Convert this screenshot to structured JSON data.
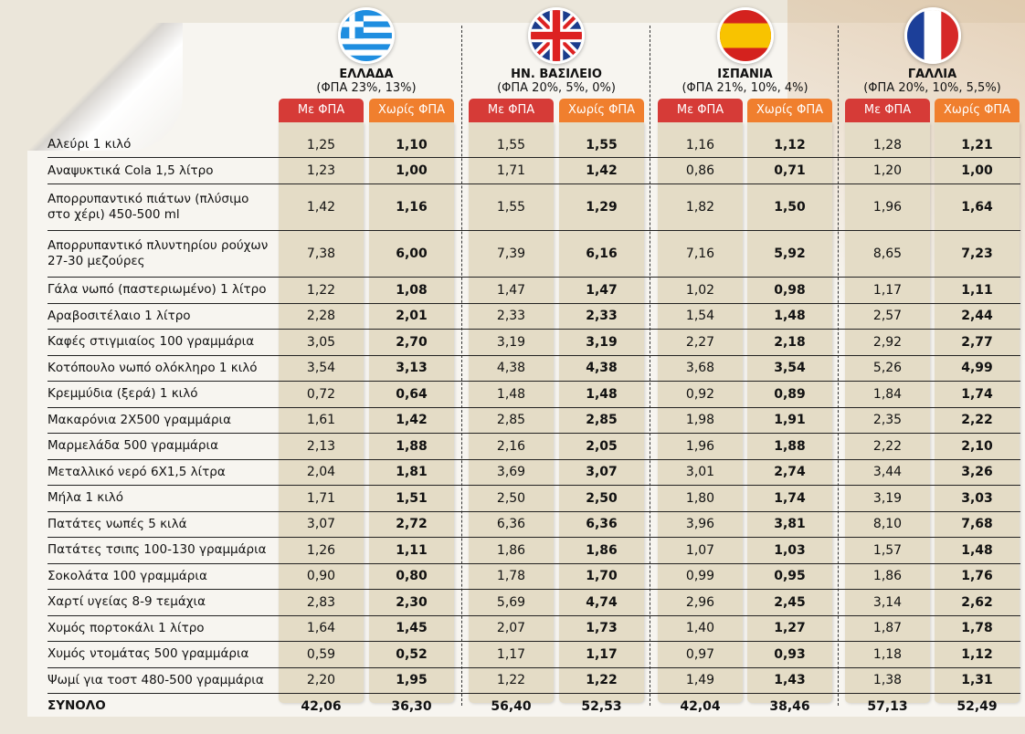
{
  "chart_data": {
    "type": "table",
    "title": "",
    "column_headers": [
      "Με ΦΠΑ",
      "Χωρίς ΦΠΑ"
    ],
    "countries": [
      {
        "name": "ΕΛΛΑΔΑ",
        "vat": "(ΦΠΑ 23%, 13%)",
        "flag": "greece-flag"
      },
      {
        "name": "ΗΝ. ΒΑΣΙΛΕΙΟ",
        "vat": "(ΦΠΑ 20%, 5%, 0%)",
        "flag": "uk-flag"
      },
      {
        "name": "ΙΣΠΑΝΙΑ",
        "vat": "(ΦΠΑ 21%, 10%, 4%)",
        "flag": "spain-flag"
      },
      {
        "name": "ΓΑΛΛΙΑ",
        "vat": "(ΦΠΑ 20%, 10%, 5,5%)",
        "flag": "france-flag"
      }
    ],
    "rows": [
      {
        "item": "Αλεύρι 1 κιλό",
        "values": [
          "1,25",
          "1,10",
          "1,55",
          "1,55",
          "1,16",
          "1,12",
          "1,28",
          "1,21"
        ]
      },
      {
        "item": "Αναψυκτικά Cola 1,5 λίτρο",
        "values": [
          "1,23",
          "1,00",
          "1,71",
          "1,42",
          "0,86",
          "0,71",
          "1,20",
          "1,00"
        ]
      },
      {
        "item": "Απορρυπαντικό πιάτων (πλύσιμο στο χέρι) 450-500 ml",
        "values": [
          "1,42",
          "1,16",
          "1,55",
          "1,29",
          "1,82",
          "1,50",
          "1,96",
          "1,64"
        ]
      },
      {
        "item": "Απορρυπαντικό πλυντηρίου ρούχων 27-30 μεζούρες",
        "values": [
          "7,38",
          "6,00",
          "7,39",
          "6,16",
          "7,16",
          "5,92",
          "8,65",
          "7,23"
        ]
      },
      {
        "item": "Γάλα νωπό (παστεριωμένο) 1 λίτρο",
        "values": [
          "1,22",
          "1,08",
          "1,47",
          "1,47",
          "1,02",
          "0,98",
          "1,17",
          "1,11"
        ]
      },
      {
        "item": "Αραβοσιτέλαιο 1 λίτρο",
        "values": [
          "2,28",
          "2,01",
          "2,33",
          "2,33",
          "1,54",
          "1,48",
          "2,57",
          "2,44"
        ]
      },
      {
        "item": "Καφές στιγμιαίος 100 γραμμάρια",
        "values": [
          "3,05",
          "2,70",
          "3,19",
          "3,19",
          "2,27",
          "2,18",
          "2,92",
          "2,77"
        ]
      },
      {
        "item": "Κοτόπουλο νωπό ολόκληρο 1 κιλό",
        "values": [
          "3,54",
          "3,13",
          "4,38",
          "4,38",
          "3,68",
          "3,54",
          "5,26",
          "4,99"
        ]
      },
      {
        "item": "Κρεμμύδια (ξερά) 1 κιλό",
        "values": [
          "0,72",
          "0,64",
          "1,48",
          "1,48",
          "0,92",
          "0,89",
          "1,84",
          "1,74"
        ]
      },
      {
        "item": "Μακαρόνια 2Χ500 γραμμάρια",
        "values": [
          "1,61",
          "1,42",
          "2,85",
          "2,85",
          "1,98",
          "1,91",
          "2,35",
          "2,22"
        ]
      },
      {
        "item": "Μαρμελάδα 500 γραμμάρια",
        "values": [
          "2,13",
          "1,88",
          "2,16",
          "2,05",
          "1,96",
          "1,88",
          "2,22",
          "2,10"
        ]
      },
      {
        "item": "Μεταλλικό νερό 6Χ1,5 λίτρα",
        "values": [
          "2,04",
          "1,81",
          "3,69",
          "3,07",
          "3,01",
          "2,74",
          "3,44",
          "3,26"
        ]
      },
      {
        "item": "Μήλα 1 κιλό",
        "values": [
          "1,71",
          "1,51",
          "2,50",
          "2,50",
          "1,80",
          "1,74",
          "3,19",
          "3,03"
        ]
      },
      {
        "item": "Πατάτες νωπές 5 κιλά",
        "values": [
          "3,07",
          "2,72",
          "6,36",
          "6,36",
          "3,96",
          "3,81",
          "8,10",
          "7,68"
        ]
      },
      {
        "item": "Πατάτες τσιπς 100-130 γραμμάρια",
        "values": [
          "1,26",
          "1,11",
          "1,86",
          "1,86",
          "1,07",
          "1,03",
          "1,57",
          "1,48"
        ]
      },
      {
        "item": "Σοκολάτα 100 γραμμάρια",
        "values": [
          "0,90",
          "0,80",
          "1,78",
          "1,70",
          "0,99",
          "0,95",
          "1,86",
          "1,76"
        ]
      },
      {
        "item": "Χαρτί υγείας 8-9 τεμάχια",
        "values": [
          "2,83",
          "2,30",
          "5,69",
          "4,74",
          "2,96",
          "2,45",
          "3,14",
          "2,62"
        ]
      },
      {
        "item": "Χυμός πορτοκάλι 1 λίτρο",
        "values": [
          "1,64",
          "1,45",
          "2,07",
          "1,73",
          "1,40",
          "1,27",
          "1,87",
          "1,78"
        ]
      },
      {
        "item": "Χυμός ντομάτας 500 γραμμάρια",
        "values": [
          "0,59",
          "0,52",
          "1,17",
          "1,17",
          "0,97",
          "0,93",
          "1,18",
          "1,12"
        ]
      },
      {
        "item": "Ψωμί για τοστ 480-500 γραμμάρια",
        "values": [
          "2,20",
          "1,95",
          "1,22",
          "1,22",
          "1,49",
          "1,43",
          "1,38",
          "1,31"
        ]
      }
    ],
    "total": {
      "item": "ΣΥΝΟΛΟ",
      "values": [
        "42,06",
        "36,30",
        "56,40",
        "52,53",
        "42,04",
        "38,46",
        "57,13",
        "52,49"
      ]
    },
    "colors": {
      "with_vat": "#d63b37",
      "without_vat": "#f07f2e"
    }
  }
}
